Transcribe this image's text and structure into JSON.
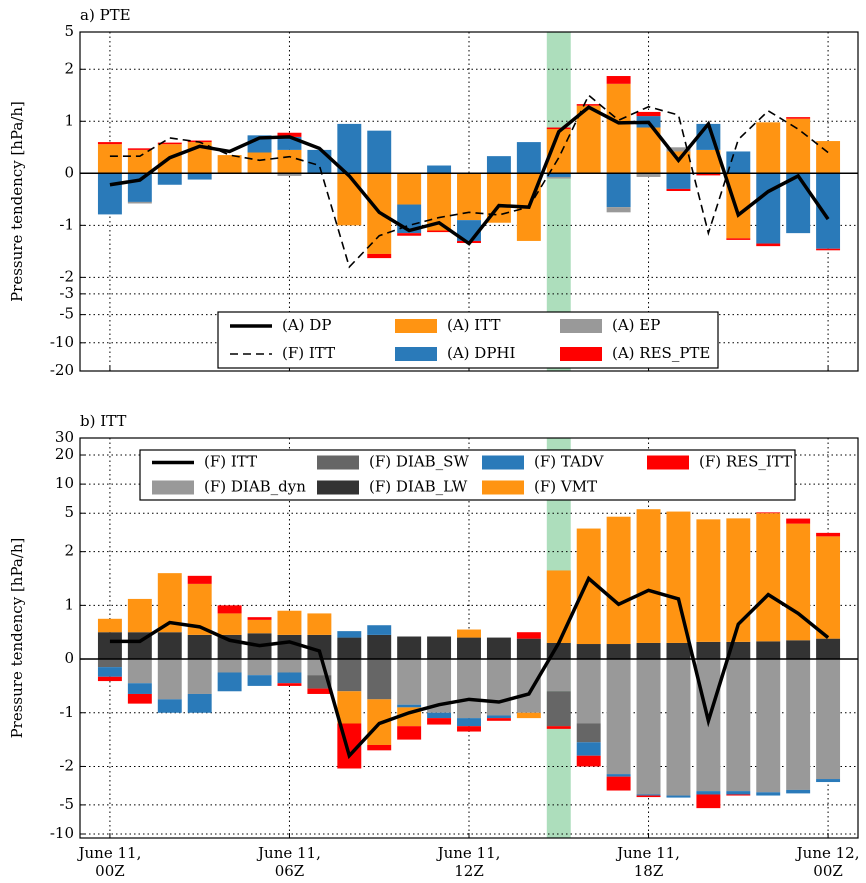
{
  "chart_data": [
    {
      "type": "bar",
      "title": "a) PTE",
      "ylabel": "Pressure tendency [hPa/h]",
      "stacked": true,
      "grid": true,
      "yscale": "symlog",
      "legend": "lower center",
      "x": [
        0,
        1,
        2,
        3,
        4,
        5,
        6,
        7,
        8,
        9,
        10,
        11,
        12,
        13,
        14,
        15,
        16,
        17,
        18,
        19,
        20,
        21,
        22,
        23,
        24
      ],
      "xlim": [
        -1,
        25
      ],
      "xticks": [
        0,
        6,
        12,
        18,
        24
      ],
      "ylim": [
        -20,
        5
      ],
      "yticks": [
        -20,
        -10,
        -5,
        -3,
        -2,
        -1,
        0,
        1,
        2,
        5
      ],
      "shade": {
        "xlim": [
          14.6,
          15.4
        ],
        "color": "#9fd8b0"
      },
      "lines": [
        {
          "name": "(A) DP",
          "color": "#000000",
          "dash": "none",
          "values": [
            -0.22,
            -0.13,
            0.3,
            0.52,
            0.42,
            0.68,
            0.7,
            0.48,
            -0.05,
            -0.75,
            -1.1,
            -0.95,
            -1.35,
            -0.62,
            -0.65,
            0.8,
            1.27,
            0.97,
            0.98,
            0.25,
            0.95,
            -0.8,
            -0.35,
            -0.05,
            -0.88
          ]
        },
        {
          "name": "(F) ITT",
          "color": "#000000",
          "dash": "8 5",
          "values": [
            0.33,
            0.33,
            0.68,
            0.6,
            0.35,
            0.25,
            0.32,
            0.15,
            -1.8,
            -1.2,
            -1.0,
            -0.85,
            -0.75,
            -0.8,
            -0.65,
            0.3,
            1.5,
            1.02,
            1.28,
            1.12,
            -1.15,
            0.65,
            1.2,
            0.85,
            0.4
          ]
        }
      ],
      "series": [
        {
          "name": "(A) ITT",
          "color": "#ff9412",
          "values": [
            0.56,
            0.45,
            0.56,
            0.6,
            0.35,
            0.4,
            0.45,
            0,
            -1.0,
            -1.55,
            -0.6,
            -1.1,
            -0.9,
            -0.95,
            -1.3,
            0.85,
            1.3,
            1.72,
            0.88,
            0.42,
            0.45,
            -1.25,
            0.98,
            1.05,
            0.62
          ]
        },
        {
          "name": "(A) DPHI",
          "color": "#2a7ab9",
          "values": [
            -0.79,
            -0.55,
            -0.22,
            -0.12,
            0,
            0.33,
            0.25,
            0.45,
            0.95,
            0.82,
            -0.55,
            0.15,
            -0.4,
            0.33,
            0.6,
            -0.07,
            0,
            -0.65,
            0.22,
            -0.3,
            0.5,
            0.42,
            -1.35,
            -1.15,
            -1.45
          ]
        },
        {
          "name": "(A) EP",
          "color": "#999999",
          "values": [
            0,
            -0.03,
            0,
            0,
            0,
            0,
            -0.05,
            0,
            0,
            0,
            0,
            0,
            0,
            0,
            0,
            -0.03,
            0,
            -0.1,
            -0.07,
            0.08,
            0,
            0,
            0,
            0,
            0
          ]
        },
        {
          "name": "(A) RES_PTE",
          "color": "#ff0000",
          "values": [
            0.04,
            0.03,
            0.03,
            0.03,
            0,
            0,
            0.08,
            0,
            0,
            -0.08,
            -0.05,
            -0.03,
            -0.04,
            0,
            0,
            0.03,
            0.03,
            0.15,
            0.08,
            -0.04,
            -0.04,
            -0.03,
            -0.05,
            0.03,
            -0.03
          ]
        }
      ]
    },
    {
      "type": "bar",
      "title": "b) ITT",
      "ylabel": "Pressure tendency [hPa/h]",
      "stacked": true,
      "grid": true,
      "yscale": "symlog",
      "legend": "upper center",
      "x": [
        0,
        1,
        2,
        3,
        4,
        5,
        6,
        7,
        8,
        9,
        10,
        11,
        12,
        13,
        14,
        15,
        16,
        17,
        18,
        19,
        20,
        21,
        22,
        23,
        24
      ],
      "xlim": [
        -1,
        25
      ],
      "xticks": [
        {
          "value": 0,
          "label": "June 11,\n00Z"
        },
        {
          "value": 6,
          "label": "June 11,\n06Z"
        },
        {
          "value": 12,
          "label": "June 11,\n12Z"
        },
        {
          "value": 18,
          "label": "June 11,\n18Z"
        },
        {
          "value": 24,
          "label": "June 12,\n00Z"
        }
      ],
      "ylim": [
        -11,
        30
      ],
      "yticks": [
        -10,
        -5,
        -2,
        -1,
        0,
        1,
        2,
        5,
        10,
        20,
        30
      ],
      "shade": {
        "xlim": [
          14.6,
          15.4
        ],
        "color": "#9fd8b0"
      },
      "lines": [
        {
          "name": "(F) ITT",
          "color": "#000000",
          "dash": "none",
          "values": [
            0.33,
            0.33,
            0.68,
            0.6,
            0.35,
            0.25,
            0.32,
            0.15,
            -1.8,
            -1.2,
            -1.0,
            -0.85,
            -0.75,
            -0.8,
            -0.65,
            0.3,
            1.5,
            1.02,
            1.28,
            1.12,
            -1.15,
            0.65,
            1.2,
            0.85,
            0.4
          ]
        }
      ],
      "series": [
        {
          "name": "(F) DIAB_dyn",
          "color": "#999999",
          "values": [
            0,
            -0.45,
            -0.75,
            -0.65,
            -0.25,
            -0.3,
            -0.25,
            -0.3,
            0,
            0,
            -0.85,
            -1.0,
            -1.1,
            -1.05,
            -1.0,
            -0.6,
            -1.2,
            -2.4,
            -3.9,
            -4.0,
            -3.6,
            -3.6,
            -3.7,
            -3.5,
            -2.7
          ]
        },
        {
          "name": "(F) DIAB_SW",
          "color": "#666666",
          "values": [
            -0.15,
            0,
            0,
            0,
            0,
            0,
            0,
            -0.25,
            -0.6,
            -0.75,
            0,
            0,
            0,
            0,
            0,
            -0.65,
            -0.35,
            0,
            0,
            0,
            0,
            0,
            0,
            0,
            0
          ]
        },
        {
          "name": "(F) DIAB_LW",
          "color": "#333333",
          "values": [
            0.5,
            0.5,
            0.5,
            0.45,
            0.45,
            0.48,
            0.45,
            0.45,
            0.4,
            0.45,
            0.42,
            0.42,
            0.4,
            0.4,
            0.38,
            0.3,
            0.28,
            0.28,
            0.3,
            0.3,
            0.32,
            0.32,
            0.33,
            0.35,
            0.38
          ]
        },
        {
          "name": "(F) TADV",
          "color": "#2a7ab9",
          "values": [
            -0.18,
            -0.2,
            -0.25,
            -0.35,
            -0.35,
            -0.2,
            -0.2,
            0,
            0.12,
            0.18,
            -0.05,
            -0.1,
            -0.15,
            -0.05,
            0,
            0,
            -0.25,
            -0.15,
            -0.1,
            -0.2,
            -0.3,
            -0.3,
            -0.3,
            -0.3,
            -0.2
          ]
        },
        {
          "name": "(F) VMT",
          "color": "#ff9412",
          "values": [
            0.25,
            0.62,
            1.1,
            0.95,
            0.4,
            0.25,
            0.45,
            0.4,
            -0.6,
            -0.85,
            -0.35,
            0,
            0.15,
            0,
            -0.1,
            1.35,
            3.19,
            4.32,
            5.2,
            4.9,
            4.0,
            4.1,
            4.67,
            3.55,
            2.5
          ]
        },
        {
          "name": "(F) RES_ITT",
          "color": "#ff0000",
          "values": [
            -0.08,
            -0.18,
            0,
            0.15,
            0.15,
            0.05,
            -0.05,
            -0.1,
            -0.9,
            -0.1,
            -0.25,
            -0.12,
            -0.1,
            -0.05,
            0.12,
            -0.05,
            -0.2,
            -1.0,
            -0.15,
            0,
            -1.5,
            -0.1,
            0.1,
            0.5,
            0.25
          ]
        }
      ]
    }
  ]
}
